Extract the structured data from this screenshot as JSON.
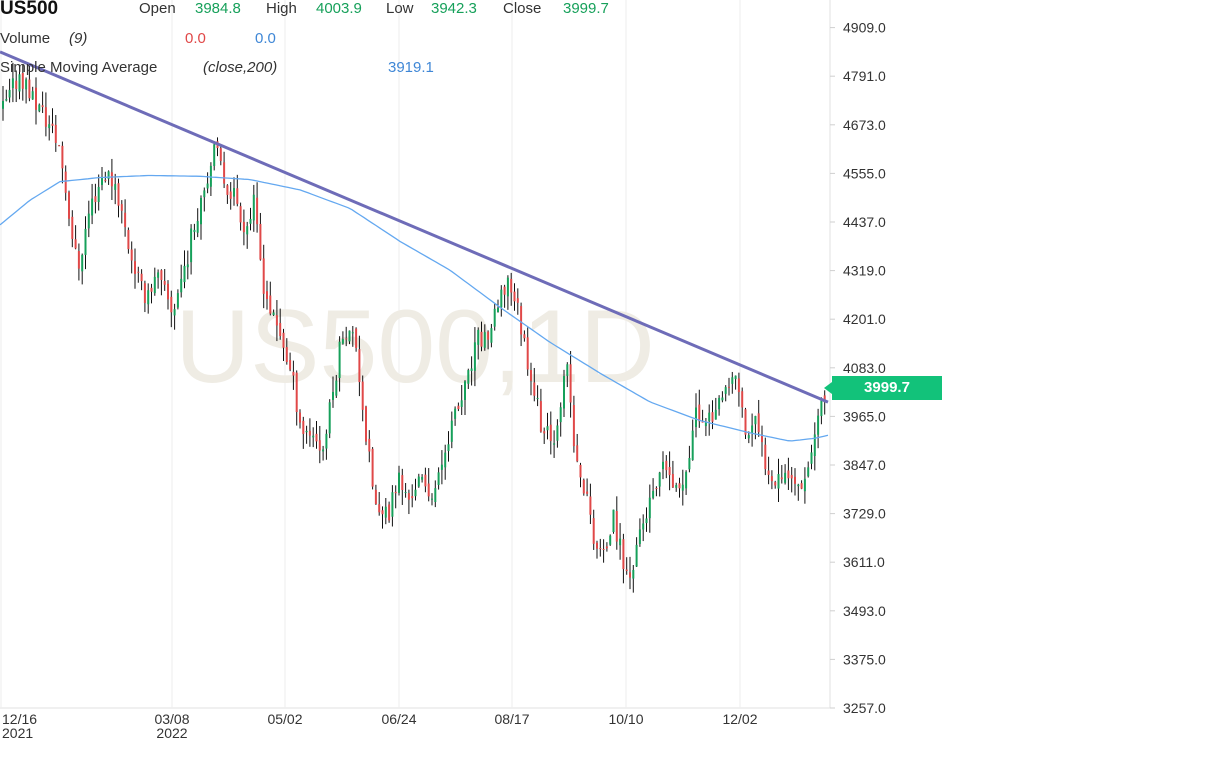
{
  "header": {
    "symbol": "US500",
    "open_label": "Open",
    "open_value": "3984.8",
    "high_label": "High",
    "high_value": "4003.9",
    "low_label": "Low",
    "low_value": "3942.3",
    "close_label": "Close",
    "close_value": "3999.7"
  },
  "volume": {
    "label": "Volume",
    "param": "(9)",
    "value_a": "0.0",
    "value_b": "0.0"
  },
  "sma": {
    "label": "Simple Moving Average",
    "param": "(close,200)",
    "value": "3919.1"
  },
  "watermark": "US500,1D",
  "price_tag": "3999.7",
  "colors": {
    "up": "#16a05a",
    "down": "#e04848",
    "sma": "#64a8f0",
    "trend": "#6e6cb8",
    "tag": "#12c27a"
  },
  "chart_data": {
    "type": "candlestick",
    "y_range": [
      3240,
      4940
    ],
    "y_ticks": [
      "4909.0",
      "4791.0",
      "4673.0",
      "4555.0",
      "4437.0",
      "4319.0",
      "4201.0",
      "4083.0",
      "3965.0",
      "3847.0",
      "3729.0",
      "3611.0",
      "3493.0",
      "3375.0",
      "3257.0"
    ],
    "x_ticks": [
      {
        "label": "12/16",
        "sub": "2021"
      },
      {
        "label": "03/08",
        "sub": "2022"
      },
      {
        "label": "05/02",
        "sub": ""
      },
      {
        "label": "06/24",
        "sub": ""
      },
      {
        "label": "08/17",
        "sub": ""
      },
      {
        "label": "10/10",
        "sub": ""
      },
      {
        "label": "12/02",
        "sub": ""
      }
    ],
    "price_path": [
      [
        0,
        4700
      ],
      [
        8,
        4720
      ],
      [
        22,
        4800
      ],
      [
        35,
        4740
      ],
      [
        50,
        4680
      ],
      [
        62,
        4620
      ],
      [
        72,
        4450
      ],
      [
        80,
        4320
      ],
      [
        92,
        4470
      ],
      [
        106,
        4560
      ],
      [
        118,
        4530
      ],
      [
        130,
        4390
      ],
      [
        145,
        4260
      ],
      [
        160,
        4300
      ],
      [
        175,
        4220
      ],
      [
        190,
        4360
      ],
      [
        205,
        4520
      ],
      [
        218,
        4610
      ],
      [
        228,
        4530
      ],
      [
        238,
        4500
      ],
      [
        248,
        4420
      ],
      [
        256,
        4480
      ],
      [
        265,
        4300
      ],
      [
        275,
        4200
      ],
      [
        285,
        4150
      ],
      [
        295,
        4050
      ],
      [
        305,
        3930
      ],
      [
        315,
        3930
      ],
      [
        325,
        3880
      ],
      [
        335,
        4020
      ],
      [
        345,
        4180
      ],
      [
        358,
        4150
      ],
      [
        370,
        3880
      ],
      [
        380,
        3720
      ],
      [
        390,
        3720
      ],
      [
        400,
        3820
      ],
      [
        410,
        3760
      ],
      [
        420,
        3810
      ],
      [
        430,
        3780
      ],
      [
        440,
        3800
      ],
      [
        450,
        3920
      ],
      [
        460,
        3980
      ],
      [
        470,
        4050
      ],
      [
        480,
        4150
      ],
      [
        490,
        4160
      ],
      [
        500,
        4220
      ],
      [
        510,
        4300
      ],
      [
        518,
        4250
      ],
      [
        527,
        4140
      ],
      [
        535,
        4050
      ],
      [
        545,
        3930
      ],
      [
        555,
        3900
      ],
      [
        562,
        4000
      ],
      [
        570,
        4080
      ],
      [
        578,
        3850
      ],
      [
        588,
        3780
      ],
      [
        597,
        3660
      ],
      [
        606,
        3620
      ],
      [
        615,
        3720
      ],
      [
        623,
        3640
      ],
      [
        631,
        3560
      ],
      [
        641,
        3680
      ],
      [
        650,
        3740
      ],
      [
        660,
        3790
      ],
      [
        668,
        3850
      ],
      [
        678,
        3770
      ],
      [
        688,
        3840
      ],
      [
        698,
        3970
      ],
      [
        708,
        3960
      ],
      [
        718,
        3980
      ],
      [
        728,
        4010
      ],
      [
        738,
        4070
      ],
      [
        748,
        3920
      ],
      [
        758,
        3950
      ],
      [
        767,
        3860
      ],
      [
        777,
        3820
      ],
      [
        787,
        3840
      ],
      [
        797,
        3800
      ],
      [
        807,
        3820
      ],
      [
        815,
        3900
      ],
      [
        822,
        3975
      ],
      [
        828,
        3999.7
      ]
    ],
    "sma_path": [
      [
        0,
        4430
      ],
      [
        30,
        4490
      ],
      [
        60,
        4535
      ],
      [
        100,
        4545
      ],
      [
        150,
        4550
      ],
      [
        200,
        4548
      ],
      [
        250,
        4540
      ],
      [
        300,
        4515
      ],
      [
        350,
        4470
      ],
      [
        400,
        4390
      ],
      [
        450,
        4320
      ],
      [
        500,
        4230
      ],
      [
        550,
        4145
      ],
      [
        600,
        4070
      ],
      [
        650,
        4000
      ],
      [
        700,
        3955
      ],
      [
        750,
        3925
      ],
      [
        790,
        3905
      ],
      [
        815,
        3912
      ],
      [
        828,
        3919.1
      ]
    ],
    "trendline": [
      [
        0,
        4850
      ],
      [
        828,
        3999.7
      ]
    ]
  }
}
